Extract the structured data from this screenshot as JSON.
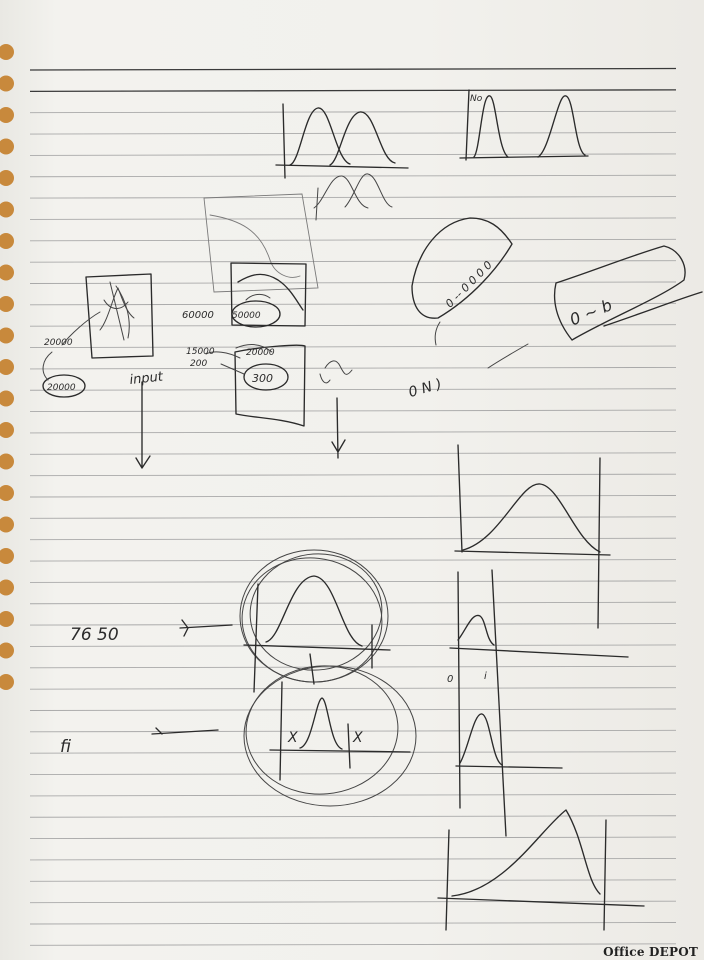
{
  "notebook": {
    "brand": "Office DEPOT",
    "ruled_lines": 42,
    "spiral_holes": 26,
    "paper_color": "#f1f0ec",
    "line_color": "#a9a9a9",
    "ink_color": "#2b2b2b",
    "ring_color": "#c8893c"
  },
  "handwriting": {
    "no_label": "No",
    "input_label": "input",
    "value_20000_a": "20000",
    "value_20000_b": "20000",
    "value_60000": "60000",
    "value_50000": "50000",
    "value_15000": "15000",
    "value_200": "200",
    "value_300": "300",
    "value_20000_c": "20000",
    "value_76": "76 50",
    "value_fi": "fi",
    "label_o": "0",
    "label_i": "i",
    "label_x1": "X",
    "label_x2": "X",
    "rotated_on": "0 N )"
  }
}
